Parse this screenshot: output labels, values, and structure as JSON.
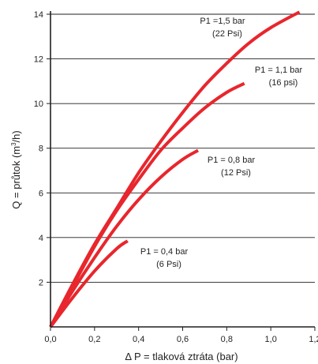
{
  "chart_data": {
    "type": "line",
    "xlabel": "Δ P = tlaková ztráta (bar)",
    "ylabel_main": "Q = průtok (m",
    "ylabel_sup": "3",
    "ylabel_end": "/h)",
    "xlim": [
      0,
      1.2
    ],
    "ylim": [
      0,
      14
    ],
    "x_ticks": [
      "0,0",
      "0,2",
      "0,4",
      "0,6",
      "0,8",
      "1,0",
      "1,2"
    ],
    "y_ticks": [
      "2",
      "4",
      "6",
      "8",
      "10",
      "12",
      "14"
    ],
    "grid": "horizontal",
    "line_color": "#e8262d",
    "series": [
      {
        "name_line1": "P1 =1,5 bar",
        "name_line2": "(22 Psi)",
        "x": [
          0,
          0.1,
          0.2,
          0.3,
          0.4,
          0.5,
          0.6,
          0.7,
          0.8,
          0.9,
          1.0,
          1.13
        ],
        "y": [
          0,
          1.9,
          3.7,
          5.3,
          6.9,
          8.3,
          9.6,
          10.8,
          11.8,
          12.7,
          13.4,
          14.1
        ]
      },
      {
        "name_line1": "P1 = 1,1 bar",
        "name_line2": "(16 psi)",
        "x": [
          0,
          0.1,
          0.2,
          0.3,
          0.4,
          0.5,
          0.6,
          0.7,
          0.8,
          0.88
        ],
        "y": [
          0,
          1.8,
          3.6,
          5.2,
          6.6,
          7.9,
          8.9,
          9.8,
          10.5,
          10.9
        ]
      },
      {
        "name_line1": "P1 = 0,8 bar",
        "name_line2": "(12 Psi)",
        "x": [
          0,
          0.1,
          0.2,
          0.3,
          0.4,
          0.5,
          0.6,
          0.67
        ],
        "y": [
          0,
          1.6,
          3.1,
          4.5,
          5.7,
          6.7,
          7.5,
          7.9
        ]
      },
      {
        "name_line1": "P1 = 0,4 bar",
        "name_line2": "(6 Psi)",
        "x": [
          0,
          0.1,
          0.2,
          0.3,
          0.35
        ],
        "y": [
          0,
          1.3,
          2.5,
          3.5,
          3.85
        ]
      }
    ]
  }
}
